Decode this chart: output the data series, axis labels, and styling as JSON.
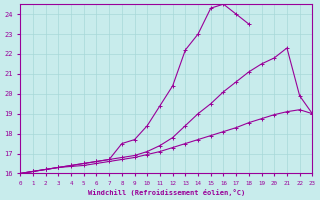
{
  "background_color": "#c8ecec",
  "grid_color": "#a8d8d8",
  "line_color": "#990099",
  "xlabel": "Windchill (Refroidissement éolien,°C)",
  "xlim": [
    0,
    23
  ],
  "ylim": [
    16,
    24.5
  ],
  "yticks": [
    16,
    17,
    18,
    19,
    20,
    21,
    22,
    23,
    24
  ],
  "xticks": [
    0,
    1,
    2,
    3,
    4,
    5,
    6,
    7,
    8,
    9,
    10,
    11,
    12,
    13,
    14,
    15,
    16,
    17,
    18,
    19,
    20,
    21,
    22,
    23
  ],
  "line_top_x": [
    0,
    1,
    2,
    3,
    4,
    5,
    6,
    7,
    8,
    9,
    10,
    11,
    12,
    13,
    14,
    15,
    16,
    17,
    18
  ],
  "line_top_y": [
    16.0,
    16.1,
    16.2,
    16.3,
    16.4,
    16.5,
    16.6,
    16.7,
    17.5,
    17.7,
    18.4,
    19.4,
    20.4,
    22.2,
    23.0,
    24.3,
    24.5,
    24.0,
    23.5
  ],
  "line_mid_x": [
    0,
    1,
    2,
    3,
    4,
    5,
    6,
    7,
    8,
    9,
    10,
    11,
    12,
    13,
    14,
    15,
    16,
    17,
    18,
    19,
    20,
    21,
    22,
    23
  ],
  "line_mid_y": [
    16.0,
    16.1,
    16.2,
    16.3,
    16.4,
    16.5,
    16.6,
    16.7,
    16.8,
    16.9,
    17.1,
    17.4,
    17.8,
    18.4,
    19.0,
    19.5,
    20.1,
    20.6,
    21.1,
    21.5,
    21.8,
    22.3,
    19.9,
    19.0
  ],
  "line_bot_x": [
    0,
    1,
    2,
    3,
    4,
    5,
    6,
    7,
    8,
    9,
    10,
    11,
    12,
    13,
    14,
    15,
    16,
    17,
    18,
    19,
    20,
    21,
    22,
    23
  ],
  "line_bot_y": [
    16.0,
    16.1,
    16.2,
    16.3,
    16.35,
    16.4,
    16.5,
    16.6,
    16.7,
    16.8,
    16.95,
    17.1,
    17.3,
    17.5,
    17.7,
    17.9,
    18.1,
    18.3,
    18.55,
    18.75,
    18.95,
    19.1,
    19.2,
    19.0
  ]
}
